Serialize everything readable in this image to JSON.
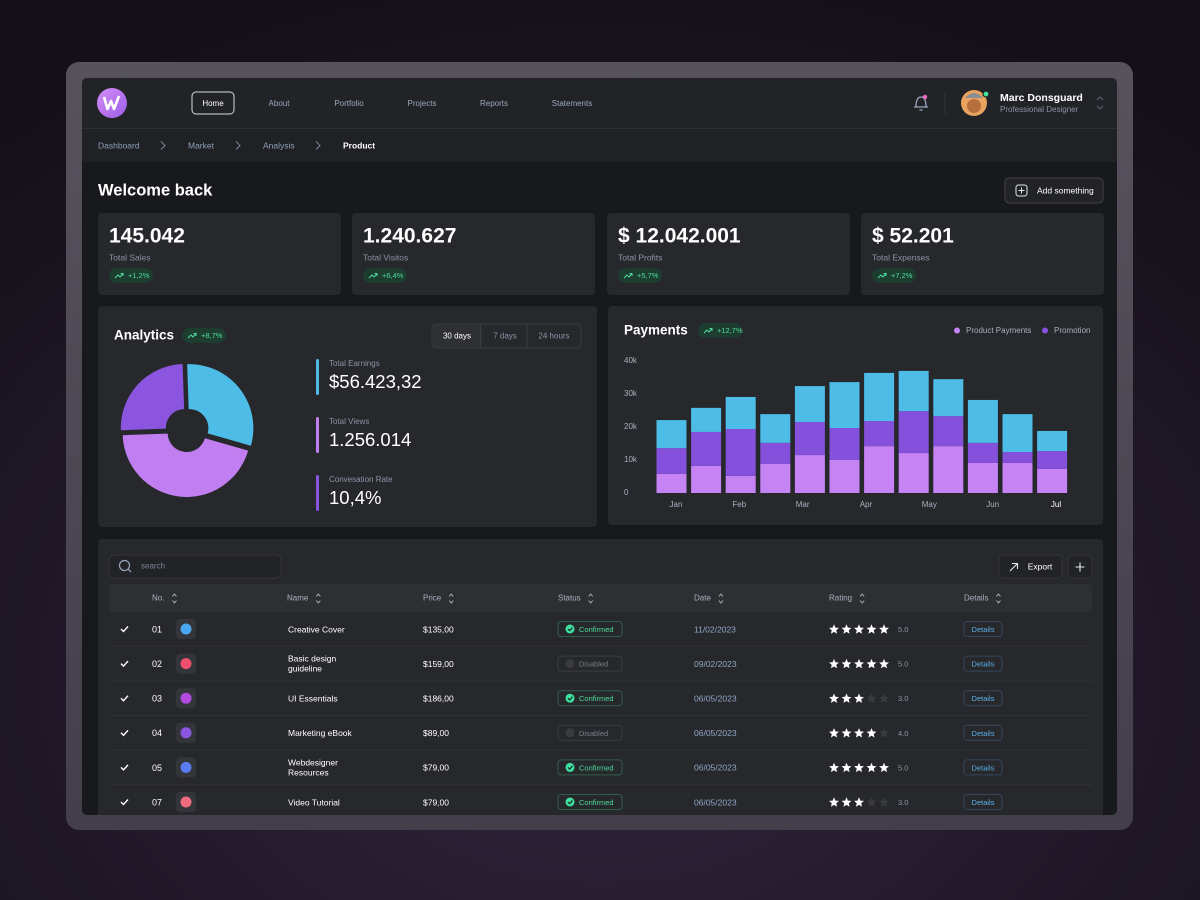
{
  "nav": {
    "items": [
      "Home",
      "About",
      "Portfolio",
      "Projects",
      "Reports",
      "Statements"
    ],
    "active": 0
  },
  "user": {
    "name": "Marc Donsguard",
    "role": "Professional Designer"
  },
  "breadcrumb": [
    "Dashboard",
    "Market",
    "Analysis",
    "Product"
  ],
  "header": {
    "title": "Welcome back",
    "button": "Add something"
  },
  "stats": [
    {
      "value": "145.042",
      "label": "Total Sales",
      "change": "+1,2%"
    },
    {
      "value": "1.240.627",
      "label": "Total Visitos",
      "change": "+6,4%"
    },
    {
      "value": "$ 12.042.001",
      "label": "Total Profits",
      "change": "+5,7%"
    },
    {
      "value": "$ 52.201",
      "label": "Total Expenses",
      "change": "+7,2%"
    }
  ],
  "analytics": {
    "title": "Analytics",
    "change": "+8,7%",
    "tabs": [
      "30 days",
      "7 days",
      "24 hours"
    ],
    "active_tab": 0,
    "metrics": [
      {
        "label": "Total Earnings",
        "value": "$56.423,32",
        "color": "#4dbde8"
      },
      {
        "label": "Total Views",
        "value": "1.256.014",
        "color": "#c07ef0"
      },
      {
        "label": "Convesation Rate",
        "value": "10,4%",
        "color": "#8b55e0"
      }
    ]
  },
  "chart_data": [
    {
      "type": "pie",
      "donut": true,
      "categories": [
        null,
        null,
        null
      ],
      "values": [
        30,
        45,
        25
      ],
      "colors": [
        "#4dbde8",
        "#c07ef0",
        "#8b55e0"
      ]
    },
    {
      "type": "bar",
      "stacked": true,
      "title": "Payments",
      "change": "+12,7%",
      "xticks": [
        "Jan",
        "Feb",
        "Mar",
        "Apr",
        "May",
        "Jun",
        "Jul"
      ],
      "ylim": [
        0,
        40000
      ],
      "yticks": [
        0,
        {
          "value": 10000,
          "label": "10k"
        },
        {
          "value": 20000,
          "label": "20k"
        },
        {
          "value": 30000,
          "label": "30k"
        },
        {
          "value": 40000,
          "label": "40k"
        }
      ],
      "series": [
        {
          "name": "Product Payments",
          "color": "#c583f4",
          "values": [
            5800,
            8200,
            5200,
            8800,
            11500,
            10000,
            14200,
            12100,
            14200,
            9100,
            9100,
            7300
          ]
        },
        {
          "name": "Promotion",
          "color": "#8550dc",
          "values": [
            7800,
            10300,
            14200,
            6400,
            10000,
            9700,
            7600,
            12700,
            9100,
            6100,
            3300,
            5400
          ]
        },
        {
          "name": null,
          "color": "#4dbde8",
          "values": [
            8500,
            7300,
            9700,
            8700,
            10900,
            13900,
            14600,
            12200,
            11200,
            13000,
            11500,
            6100
          ]
        }
      ]
    }
  ],
  "table": {
    "search": "search",
    "export": "Export",
    "headers": [
      "No.",
      "Name",
      "Price",
      "Status",
      "Date",
      "Rating",
      "Details"
    ],
    "rows": [
      {
        "no": "01",
        "name": "Creative Cover",
        "price": "$135,00",
        "status": "Confirmed",
        "date": "11/02/2023",
        "rating": {
          "value": 5,
          "label": "5.0"
        },
        "details": "Details"
      },
      {
        "no": "02",
        "name": "Basic design guideline",
        "price": "$159,00",
        "status": "Disabled",
        "date": "09/02/2023",
        "rating": {
          "value": 5,
          "label": "5.0"
        },
        "details": "Details"
      },
      {
        "no": "03",
        "name": "UI Essentials",
        "price": "$186,00",
        "status": "Confirmed",
        "date": "06/05/2023",
        "rating": {
          "value": 3,
          "label": "3.0"
        },
        "details": "Details"
      },
      {
        "no": "04",
        "name": "Marketing eBook",
        "price": "$89,00",
        "status": "Disabled",
        "date": "06/05/2023",
        "rating": {
          "value": 4,
          "label": "4.0"
        },
        "details": "Details"
      },
      {
        "no": "05",
        "name": "Webdesigner Resources",
        "price": "$79,00",
        "status": "Confirmed",
        "date": "06/05/2023",
        "rating": {
          "value": 5,
          "label": "5.0"
        },
        "details": "Details"
      },
      {
        "no": "07",
        "name": "Video Tutorial",
        "price": "$79,00",
        "status": "Confirmed",
        "date": "06/05/2023",
        "rating": {
          "value": 3,
          "label": "3.0"
        },
        "details": "Details"
      }
    ]
  }
}
